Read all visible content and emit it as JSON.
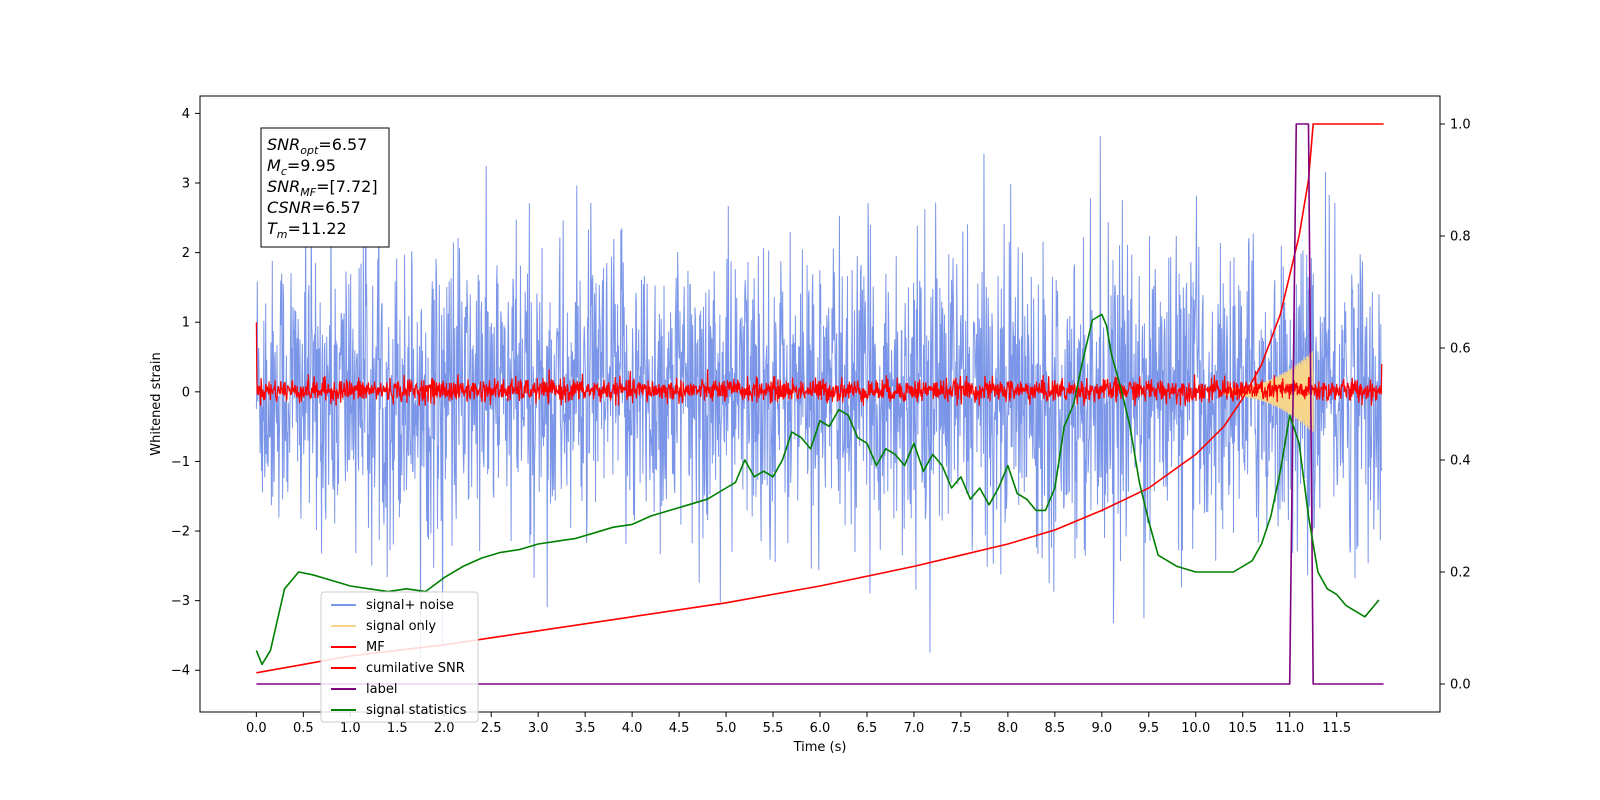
{
  "chart_data": {
    "type": "line",
    "title": "",
    "xlabel": "Time (s)",
    "ylabel": "Whitened strain",
    "ylabel_right": "",
    "xlim": [
      -0.6,
      12.6
    ],
    "ylim": [
      -4.6,
      4.25
    ],
    "ylim_right": [
      -0.05,
      1.05
    ],
    "x_ticks": [
      0.0,
      0.5,
      1.0,
      1.5,
      2.0,
      2.5,
      3.0,
      3.5,
      4.0,
      4.5,
      5.0,
      5.5,
      6.0,
      6.5,
      7.0,
      7.5,
      8.0,
      8.5,
      9.0,
      9.5,
      10.0,
      10.5,
      11.0,
      11.5
    ],
    "x_tick_labels": [
      "0.0",
      "0.5",
      "1.0",
      "1.5",
      "2.0",
      "2.5",
      "3.0",
      "3.5",
      "4.0",
      "4.5",
      "5.0",
      "5.5",
      "6.0",
      "6.5",
      "7.0",
      "7.5",
      "8.0",
      "8.5",
      "9.0",
      "9.5",
      "10.0",
      "10.5",
      "11.0",
      "11.5"
    ],
    "y_ticks": [
      -4,
      -3,
      -2,
      -1,
      0,
      1,
      2,
      3,
      4
    ],
    "y_tick_labels": [
      "−4",
      "−3",
      "−2",
      "−1",
      "0",
      "1",
      "2",
      "3",
      "4"
    ],
    "y_right_ticks": [
      0.0,
      0.2,
      0.4,
      0.6,
      0.8,
      1.0
    ],
    "y_right_tick_labels": [
      "0.0",
      "0.2",
      "0.4",
      "0.6",
      "0.8",
      "1.0"
    ],
    "grid": false,
    "legend_position": "bottom-left",
    "annotation": [
      {
        "sym": "SNR",
        "sub": "opt",
        "value": "=6.57"
      },
      {
        "sym": "M",
        "sub": "c",
        "value": "=9.95"
      },
      {
        "sym": "SNR",
        "sub": "MF",
        "value": "=[7.72]"
      },
      {
        "sym": "CSNR",
        "sub": "",
        "value": "=6.57"
      },
      {
        "sym": "T",
        "sub": "m",
        "value": "=11.22"
      }
    ],
    "series": [
      {
        "name": "signal+ noise",
        "axis": "left",
        "color": "#7b96e8",
        "description_range": [
          -4.1,
          3.9
        ]
      },
      {
        "name": "signal only",
        "axis": "left",
        "color": "#f7d58b"
      },
      {
        "name": "MF",
        "axis": "left",
        "color": "#ff0000"
      },
      {
        "name": "cumilative SNR",
        "axis": "right",
        "color": "#ff0000",
        "x": [
          0.0,
          0.5,
          1.0,
          2.0,
          3.0,
          4.0,
          5.0,
          6.0,
          7.0,
          7.5,
          8.0,
          8.5,
          9.0,
          9.5,
          10.0,
          10.3,
          10.5,
          10.7,
          10.9,
          11.0,
          11.1,
          11.2,
          11.25,
          12.0
        ],
        "y": [
          0.02,
          0.035,
          0.05,
          0.07,
          0.095,
          0.12,
          0.145,
          0.175,
          0.21,
          0.23,
          0.25,
          0.275,
          0.31,
          0.35,
          0.41,
          0.46,
          0.51,
          0.57,
          0.66,
          0.73,
          0.8,
          0.9,
          1.0,
          1.0
        ]
      },
      {
        "name": "label",
        "axis": "right",
        "color": "#800080",
        "x": [
          0.0,
          11.0,
          11.07,
          11.2,
          11.25,
          12.0
        ],
        "y": [
          0.0,
          0.0,
          1.0,
          1.0,
          0.0,
          0.0
        ]
      },
      {
        "name": "signal statistics",
        "axis": "right",
        "color": "#008000",
        "x": [
          0.0,
          0.06,
          0.15,
          0.3,
          0.45,
          0.6,
          0.8,
          1.0,
          1.2,
          1.4,
          1.6,
          1.8,
          2.0,
          2.2,
          2.4,
          2.6,
          2.8,
          3.0,
          3.2,
          3.4,
          3.6,
          3.8,
          4.0,
          4.2,
          4.4,
          4.6,
          4.8,
          5.0,
          5.1,
          5.2,
          5.3,
          5.4,
          5.5,
          5.6,
          5.7,
          5.8,
          5.9,
          6.0,
          6.1,
          6.2,
          6.3,
          6.4,
          6.5,
          6.6,
          6.7,
          6.8,
          6.9,
          7.0,
          7.1,
          7.2,
          7.3,
          7.4,
          7.5,
          7.6,
          7.7,
          7.8,
          7.9,
          8.0,
          8.1,
          8.2,
          8.3,
          8.4,
          8.5,
          8.6,
          8.7,
          8.8,
          8.9,
          9.0,
          9.05,
          9.1,
          9.2,
          9.3,
          9.4,
          9.5,
          9.6,
          9.8,
          10.0,
          10.2,
          10.4,
          10.6,
          10.7,
          10.8,
          10.9,
          11.0,
          11.1,
          11.2,
          11.3,
          11.4,
          11.5,
          11.6,
          11.7,
          11.8,
          11.9,
          11.95
        ],
        "y": [
          0.06,
          0.035,
          0.06,
          0.17,
          0.2,
          0.195,
          0.185,
          0.175,
          0.17,
          0.165,
          0.17,
          0.165,
          0.19,
          0.21,
          0.225,
          0.235,
          0.24,
          0.25,
          0.255,
          0.26,
          0.27,
          0.28,
          0.285,
          0.3,
          0.31,
          0.32,
          0.33,
          0.35,
          0.36,
          0.4,
          0.37,
          0.38,
          0.37,
          0.4,
          0.45,
          0.44,
          0.42,
          0.47,
          0.46,
          0.49,
          0.48,
          0.44,
          0.43,
          0.39,
          0.42,
          0.41,
          0.39,
          0.43,
          0.38,
          0.41,
          0.39,
          0.35,
          0.37,
          0.33,
          0.35,
          0.32,
          0.35,
          0.39,
          0.34,
          0.33,
          0.31,
          0.31,
          0.35,
          0.46,
          0.5,
          0.58,
          0.65,
          0.66,
          0.64,
          0.59,
          0.53,
          0.46,
          0.36,
          0.29,
          0.23,
          0.21,
          0.2,
          0.2,
          0.2,
          0.22,
          0.25,
          0.3,
          0.38,
          0.48,
          0.43,
          0.3,
          0.2,
          0.17,
          0.16,
          0.14,
          0.13,
          0.12,
          0.14,
          0.15
        ]
      }
    ]
  }
}
